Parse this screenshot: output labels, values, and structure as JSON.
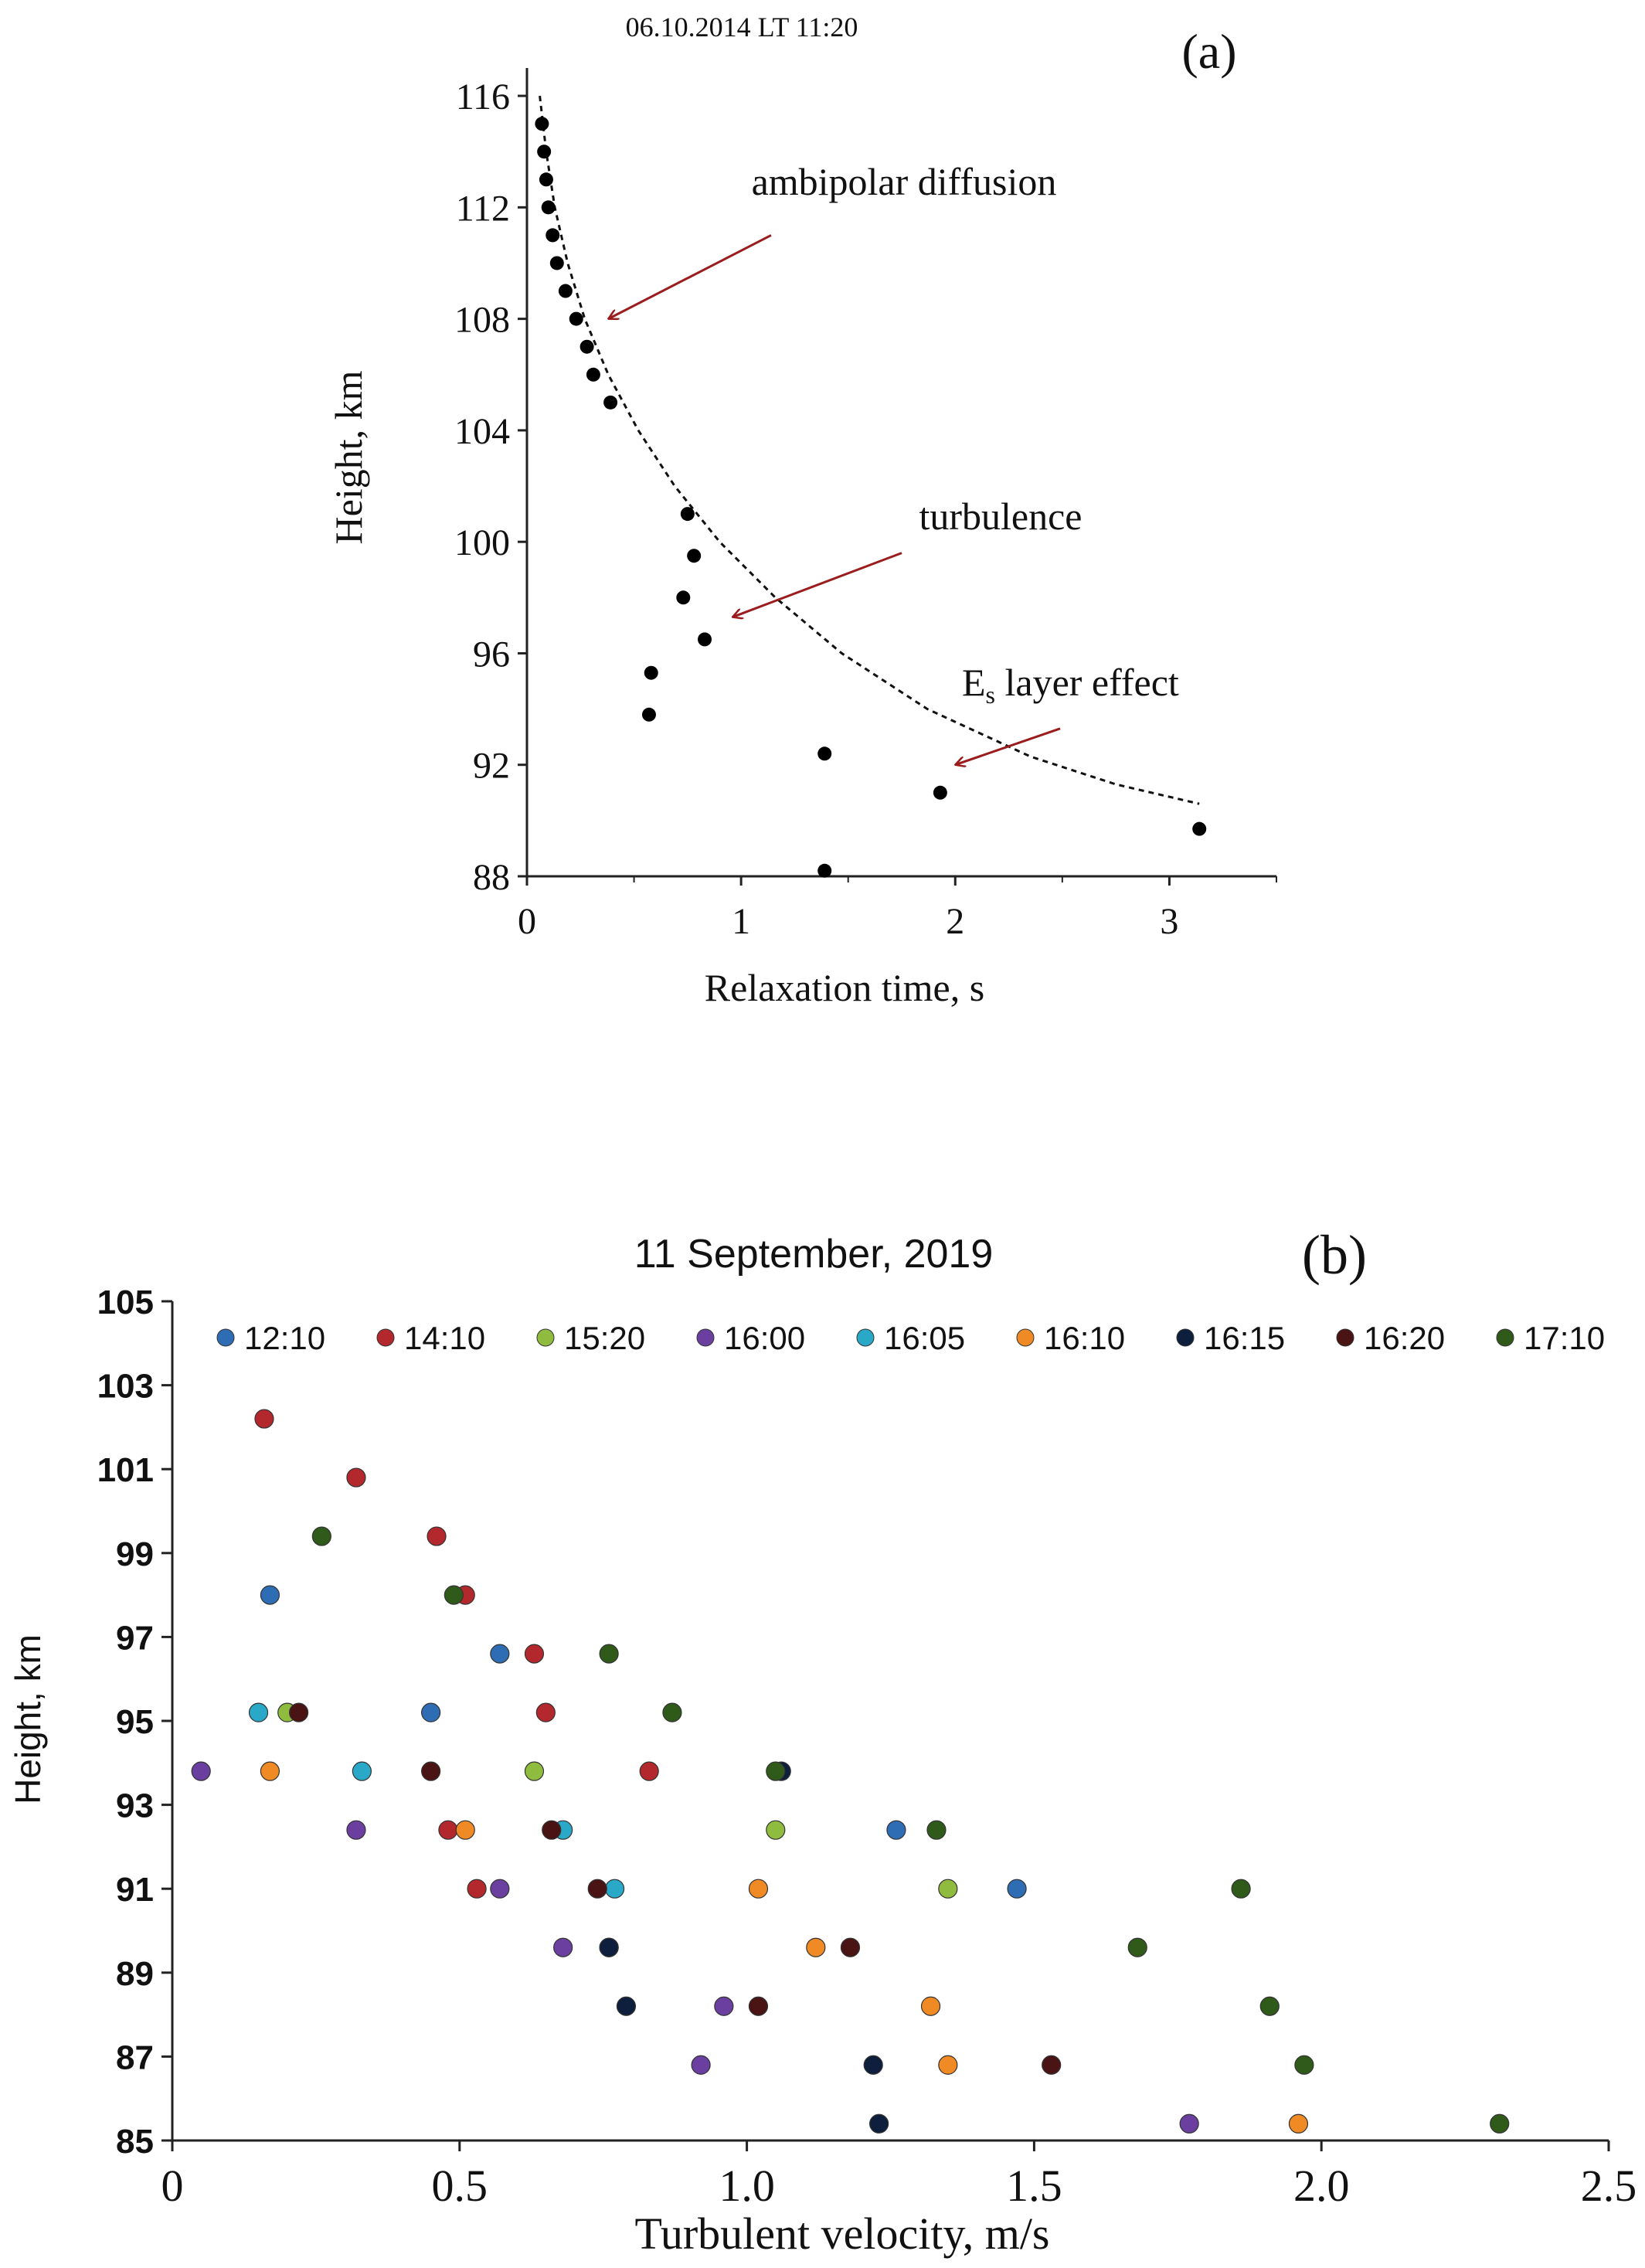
{
  "chart_data": [
    {
      "type": "scatter",
      "panel_label": "(a)",
      "title": "06.10.2014 LT 11:20",
      "xlabel": "Relaxation  time, s",
      "ylabel": "Height, km",
      "xlim": [
        0,
        3.5
      ],
      "ylim": [
        88,
        117
      ],
      "xticks": [
        0,
        1,
        2,
        3
      ],
      "xtick_labels": [
        "0",
        "1",
        "2",
        "3"
      ],
      "yticks": [
        88,
        92,
        96,
        100,
        104,
        108,
        112,
        116
      ],
      "ytick_labels": [
        "88",
        "92",
        "96",
        "100",
        "104",
        "108",
        "112",
        "116"
      ],
      "points": [
        {
          "x": 0.07,
          "y": 115
        },
        {
          "x": 0.08,
          "y": 114
        },
        {
          "x": 0.09,
          "y": 113
        },
        {
          "x": 0.1,
          "y": 112
        },
        {
          "x": 0.12,
          "y": 111
        },
        {
          "x": 0.14,
          "y": 110
        },
        {
          "x": 0.18,
          "y": 109
        },
        {
          "x": 0.23,
          "y": 108
        },
        {
          "x": 0.28,
          "y": 107
        },
        {
          "x": 0.31,
          "y": 106
        },
        {
          "x": 0.39,
          "y": 105
        },
        {
          "x": 0.75,
          "y": 101
        },
        {
          "x": 0.78,
          "y": 99.5
        },
        {
          "x": 0.73,
          "y": 98
        },
        {
          "x": 0.83,
          "y": 96.5
        },
        {
          "x": 0.58,
          "y": 95.3
        },
        {
          "x": 0.57,
          "y": 93.8
        },
        {
          "x": 1.39,
          "y": 92.4
        },
        {
          "x": 1.93,
          "y": 91
        },
        {
          "x": 3.14,
          "y": 89.7
        },
        {
          "x": 1.39,
          "y": 88.2
        }
      ],
      "fit_curve": [
        {
          "x": 0.06,
          "y": 116
        },
        {
          "x": 0.09,
          "y": 114
        },
        {
          "x": 0.13,
          "y": 112
        },
        {
          "x": 0.19,
          "y": 110
        },
        {
          "x": 0.27,
          "y": 108
        },
        {
          "x": 0.38,
          "y": 106
        },
        {
          "x": 0.52,
          "y": 104
        },
        {
          "x": 0.69,
          "y": 102
        },
        {
          "x": 0.9,
          "y": 100
        },
        {
          "x": 1.16,
          "y": 98
        },
        {
          "x": 1.47,
          "y": 96
        },
        {
          "x": 1.87,
          "y": 94
        },
        {
          "x": 2.35,
          "y": 92.3
        },
        {
          "x": 2.75,
          "y": 91.3
        },
        {
          "x": 3.14,
          "y": 90.6
        }
      ],
      "annotations": [
        {
          "text": "ambipolar diffusion",
          "tail": {
            "x": 1.14,
            "y": 111
          },
          "head": {
            "x": 0.38,
            "y": 108
          }
        },
        {
          "text": "turbulence",
          "tail": {
            "x": 1.75,
            "y": 99.6
          },
          "head": {
            "x": 0.96,
            "y": 97.3
          }
        },
        {
          "text_main": "E",
          "text_sub": "s",
          "text_rest": " layer effect",
          "tail": {
            "x": 2.49,
            "y": 93.3
          },
          "head": {
            "x": 2.0,
            "y": 92.0
          }
        }
      ],
      "colors": {
        "points": "#000000",
        "curve": "#000000",
        "arrows": "#9b1c1c"
      }
    },
    {
      "type": "scatter",
      "panel_label": "(b)",
      "title": "11 September,  2019",
      "xlabel": "Turbulent velocity, m/s",
      "ylabel": "Height, km",
      "xlim": [
        0,
        2.5
      ],
      "ylim": [
        85,
        105
      ],
      "xticks": [
        0,
        0.5,
        1.0,
        1.5,
        2.0,
        2.5
      ],
      "xtick_labels": [
        "0",
        "0.5",
        "1.0",
        "1.5",
        "2.0",
        "2.5"
      ],
      "yticks": [
        85,
        87,
        89,
        91,
        93,
        95,
        97,
        99,
        101,
        103,
        105
      ],
      "ytick_labels": [
        "85",
        "87",
        "89",
        "91",
        "93",
        "95",
        "97",
        "99",
        "101",
        "103",
        "105"
      ],
      "legend_position": "top",
      "series": [
        {
          "name": "12:10",
          "color": "#2e6db4",
          "points": [
            {
              "x": 0.17,
              "y": 98
            },
            {
              "x": 0.57,
              "y": 96.6
            },
            {
              "x": 0.45,
              "y": 95.2
            },
            {
              "x": 1.26,
              "y": 92.4
            },
            {
              "x": 1.47,
              "y": 91
            }
          ]
        },
        {
          "name": "14:10",
          "color": "#b3282d",
          "points": [
            {
              "x": 0.16,
              "y": 102.2
            },
            {
              "x": 0.32,
              "y": 100.8
            },
            {
              "x": 0.46,
              "y": 99.4
            },
            {
              "x": 0.51,
              "y": 98
            },
            {
              "x": 0.63,
              "y": 96.6
            },
            {
              "x": 0.65,
              "y": 95.2
            },
            {
              "x": 0.83,
              "y": 93.8
            },
            {
              "x": 0.48,
              "y": 92.4
            },
            {
              "x": 0.53,
              "y": 91
            }
          ]
        },
        {
          "name": "15:20",
          "color": "#8fbc3f",
          "points": [
            {
              "x": 0.2,
              "y": 95.2
            },
            {
              "x": 0.63,
              "y": 93.8
            },
            {
              "x": 1.05,
              "y": 92.4
            },
            {
              "x": 1.35,
              "y": 91
            }
          ]
        },
        {
          "name": "16:00",
          "color": "#6b3fa0",
          "points": [
            {
              "x": 0.05,
              "y": 93.8
            },
            {
              "x": 0.32,
              "y": 92.4
            },
            {
              "x": 0.57,
              "y": 91
            },
            {
              "x": 0.68,
              "y": 89.6
            },
            {
              "x": 0.96,
              "y": 88.2
            },
            {
              "x": 0.92,
              "y": 86.8
            },
            {
              "x": 1.77,
              "y": 85.4
            }
          ]
        },
        {
          "name": "16:05",
          "color": "#2aa8c8",
          "points": [
            {
              "x": 0.15,
              "y": 95.2
            },
            {
              "x": 0.33,
              "y": 93.8
            },
            {
              "x": 0.68,
              "y": 92.4
            },
            {
              "x": 0.77,
              "y": 91
            },
            {
              "x": 0.76,
              "y": 89.6
            }
          ]
        },
        {
          "name": "16:10",
          "color": "#f08a24",
          "points": [
            {
              "x": 0.17,
              "y": 93.8
            },
            {
              "x": 0.51,
              "y": 92.4
            },
            {
              "x": 1.02,
              "y": 91
            },
            {
              "x": 1.12,
              "y": 89.6
            },
            {
              "x": 1.32,
              "y": 88.2
            },
            {
              "x": 1.35,
              "y": 86.8
            },
            {
              "x": 1.96,
              "y": 85.4
            }
          ]
        },
        {
          "name": "16:15",
          "color": "#0d1f3c",
          "points": [
            {
              "x": 1.06,
              "y": 93.8
            },
            {
              "x": 0.76,
              "y": 89.6
            },
            {
              "x": 0.79,
              "y": 88.2
            },
            {
              "x": 1.22,
              "y": 86.8
            },
            {
              "x": 1.23,
              "y": 85.4
            }
          ]
        },
        {
          "name": "16:20",
          "color": "#4a1414",
          "points": [
            {
              "x": 0.22,
              "y": 95.2
            },
            {
              "x": 0.45,
              "y": 93.8
            },
            {
              "x": 0.66,
              "y": 92.4
            },
            {
              "x": 0.74,
              "y": 91
            },
            {
              "x": 1.18,
              "y": 89.6
            },
            {
              "x": 1.02,
              "y": 88.2
            },
            {
              "x": 1.53,
              "y": 86.8
            }
          ]
        },
        {
          "name": "17:10",
          "color": "#2f5a1a",
          "points": [
            {
              "x": 0.26,
              "y": 99.4
            },
            {
              "x": 0.49,
              "y": 98
            },
            {
              "x": 0.76,
              "y": 96.6
            },
            {
              "x": 0.87,
              "y": 95.2
            },
            {
              "x": 1.05,
              "y": 93.8
            },
            {
              "x": 1.33,
              "y": 92.4
            },
            {
              "x": 1.86,
              "y": 91
            },
            {
              "x": 1.68,
              "y": 89.6
            },
            {
              "x": 1.91,
              "y": 88.2
            },
            {
              "x": 1.97,
              "y": 86.8
            },
            {
              "x": 2.31,
              "y": 85.4
            }
          ]
        }
      ]
    }
  ]
}
